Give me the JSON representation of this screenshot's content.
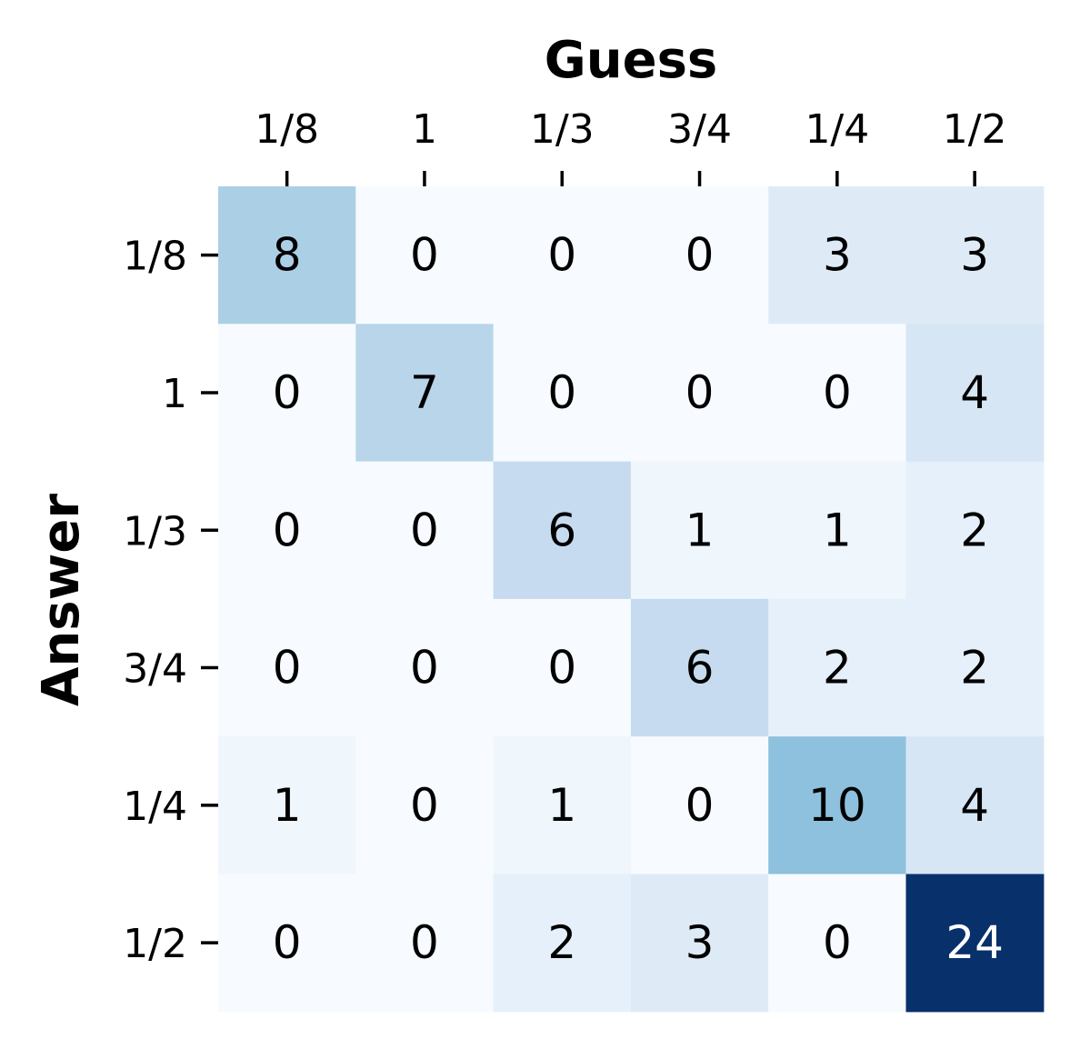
{
  "chart_data": {
    "type": "heatmap",
    "title": "",
    "xlabel": "Guess",
    "ylabel": "Answer",
    "x_categories": [
      "1/8",
      "1",
      "1/3",
      "3/4",
      "1/4",
      "1/2"
    ],
    "y_categories": [
      "1/8",
      "1",
      "1/3",
      "3/4",
      "1/4",
      "1/2"
    ],
    "values": [
      [
        8,
        0,
        0,
        0,
        3,
        3
      ],
      [
        0,
        7,
        0,
        0,
        0,
        4
      ],
      [
        0,
        0,
        6,
        1,
        1,
        2
      ],
      [
        0,
        0,
        0,
        6,
        2,
        2
      ],
      [
        1,
        0,
        1,
        0,
        10,
        4
      ],
      [
        0,
        0,
        2,
        3,
        0,
        24
      ]
    ],
    "value_range": [
      0,
      24
    ],
    "colormap": "Blues",
    "x_axis_position": "top",
    "colorbar": false,
    "grid": false,
    "annotations": true
  }
}
